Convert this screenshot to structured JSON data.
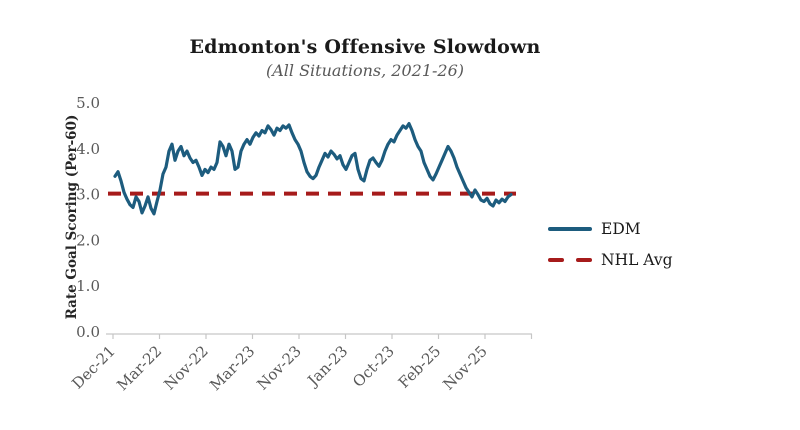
{
  "chart_data": {
    "type": "line",
    "title": "Edmonton's Offensive Slowdown",
    "subtitle": "(All Situations, 2021-26)",
    "ylabel": "Rate Goal Scoring (Per-60)",
    "xlabel": "",
    "ylim": [
      0.0,
      5.0
    ],
    "ytick_labels": [
      "0.0",
      "1.0",
      "2.0",
      "3.0",
      "4.0",
      "5.0"
    ],
    "xtick_labels": [
      "Dec-21",
      "Mar-22",
      "Nov-22",
      "Mar-23",
      "Nov-23",
      "Jan-23",
      "Oct-23",
      "Feb-25",
      "Nov-25"
    ],
    "grid": false,
    "legend_position": "right",
    "colors": {
      "edm_line": "#1d5c7e",
      "nhl_avg_line": "#a61b1b",
      "axis": "#c6c6c6",
      "tick_text": "#595959"
    },
    "series": [
      {
        "name": "EDM",
        "kind": "line",
        "line_style": "solid",
        "color": "#1d5c7e",
        "values": [
          3.4,
          3.5,
          3.3,
          3.05,
          2.9,
          2.78,
          2.72,
          2.95,
          2.85,
          2.6,
          2.75,
          2.95,
          2.7,
          2.58,
          2.85,
          3.1,
          3.45,
          3.6,
          3.95,
          4.1,
          3.75,
          3.95,
          4.05,
          3.85,
          3.95,
          3.8,
          3.7,
          3.75,
          3.6,
          3.42,
          3.55,
          3.48,
          3.6,
          3.55,
          3.7,
          4.15,
          4.05,
          3.85,
          4.1,
          3.95,
          3.55,
          3.6,
          3.95,
          4.1,
          4.2,
          4.1,
          4.25,
          4.35,
          4.28,
          4.4,
          4.35,
          4.5,
          4.42,
          4.3,
          4.45,
          4.4,
          4.5,
          4.45,
          4.52,
          4.35,
          4.2,
          4.1,
          3.95,
          3.7,
          3.5,
          3.4,
          3.35,
          3.42,
          3.6,
          3.75,
          3.9,
          3.82,
          3.95,
          3.88,
          3.78,
          3.85,
          3.65,
          3.55,
          3.7,
          3.85,
          3.9,
          3.55,
          3.35,
          3.3,
          3.55,
          3.75,
          3.8,
          3.7,
          3.62,
          3.75,
          3.95,
          4.1,
          4.2,
          4.15,
          4.3,
          4.4,
          4.5,
          4.45,
          4.55,
          4.4,
          4.2,
          4.05,
          3.95,
          3.7,
          3.55,
          3.4,
          3.32,
          3.45,
          3.6,
          3.75,
          3.9,
          4.05,
          3.95,
          3.8,
          3.6,
          3.45,
          3.3,
          3.15,
          3.05,
          2.95,
          3.1,
          3.0,
          2.88,
          2.85,
          2.92,
          2.8,
          2.75,
          2.88,
          2.82,
          2.9,
          2.85,
          2.95,
          3.0
        ]
      },
      {
        "name": "NHL Avg",
        "kind": "hline",
        "line_style": "dashed",
        "color": "#a61b1b",
        "value": 3.02
      }
    ]
  }
}
